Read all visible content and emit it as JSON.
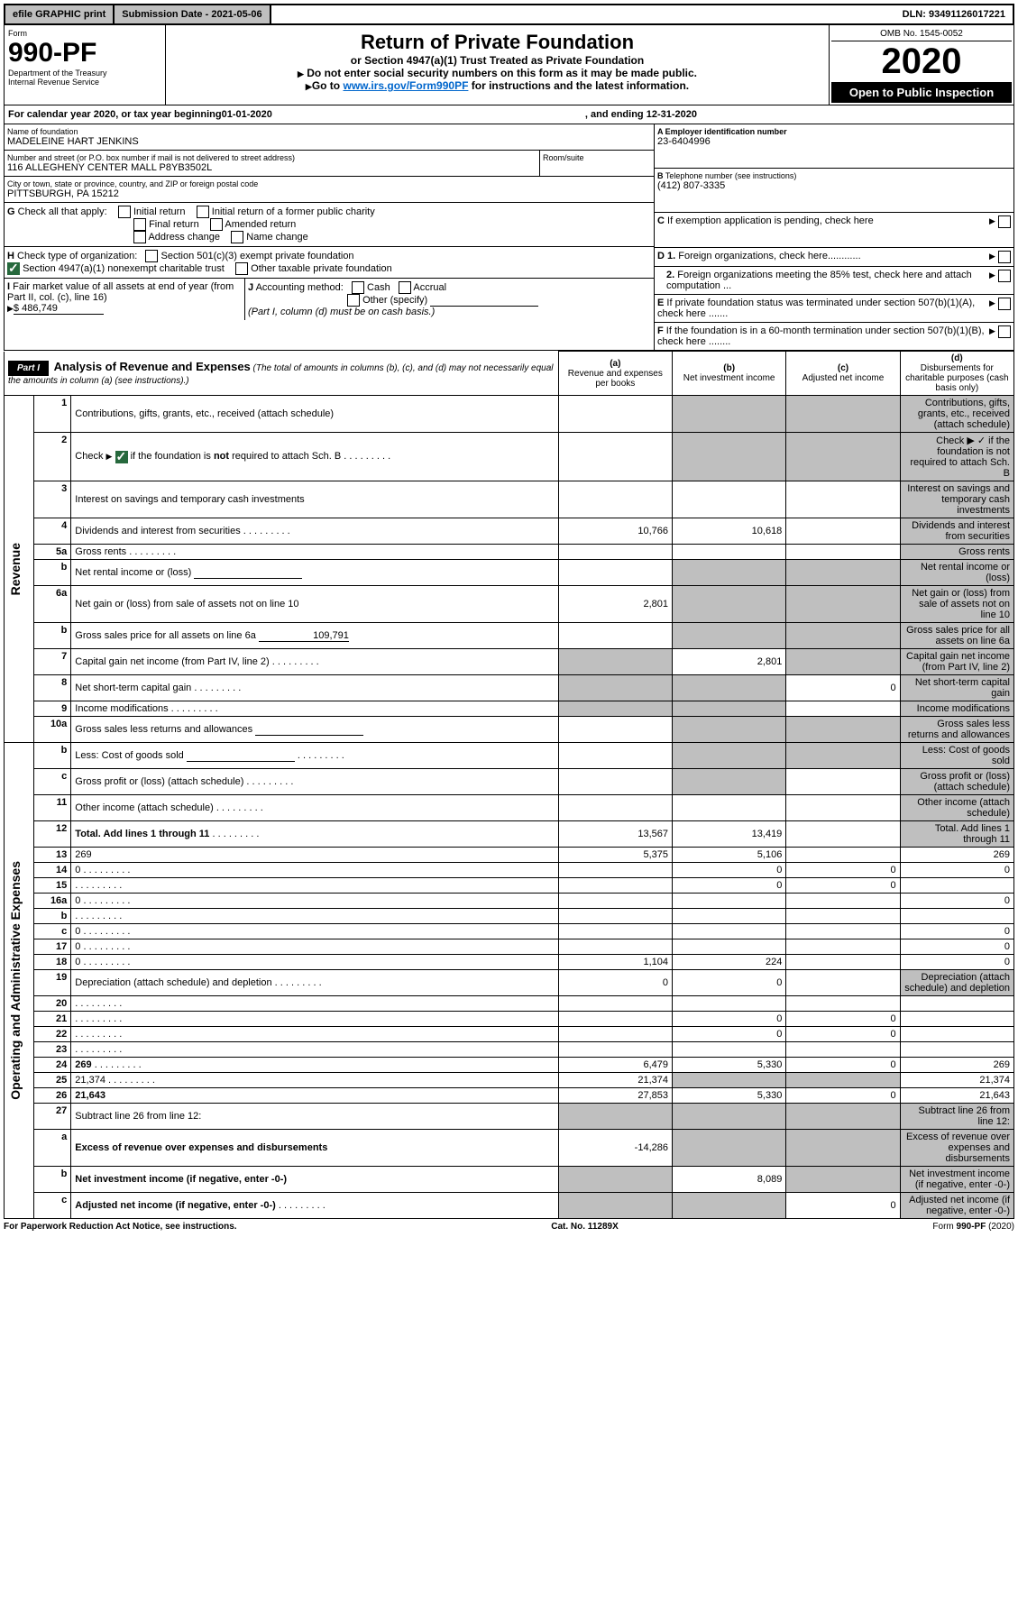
{
  "topbar": {
    "efile": "efile GRAPHIC print",
    "subdate_label": "Submission Date - ",
    "subdate": "2021-05-06",
    "dln_label": "DLN: ",
    "dln": "93491126017221"
  },
  "hl": {
    "form": "Form",
    "no": "990-PF",
    "dept": "Department of the Treasury",
    "irs": "Internal Revenue Service"
  },
  "hc": {
    "t1": "Return of Private Foundation",
    "t2": "or Section 4947(a)(1) Trust Treated as Private Foundation",
    "t3": "Do not enter social security numbers on this form as it may be made public.",
    "t4": "Go to ",
    "link": "www.irs.gov/Form990PF",
    "t5": " for instructions and the latest information."
  },
  "hr": {
    "omb": "OMB No. 1545-0052",
    "year": "2020",
    "open": "Open to Public Inspection"
  },
  "cal": {
    "a": "For calendar year 2020, or tax year beginning ",
    "b": "01-01-2020",
    "c": ", and ending ",
    "d": "12-31-2020"
  },
  "info": {
    "name_lbl": "Name of foundation",
    "name": "MADELEINE HART JENKINS",
    "street_lbl": "Number and street (or P.O. box number if mail is not delivered to street address)",
    "street": "116 ALLEGHENY CENTER MALL P8YB3502L",
    "room_lbl": "Room/suite",
    "city_lbl": "City or town, state or province, country, and ZIP or foreign postal code",
    "city": "PITTSBURGH, PA  15212",
    "A_lbl": "A Employer identification number",
    "A": "23-6404996",
    "B_lbl": "B",
    "B_txt": " Telephone number (see instructions)",
    "B": "(412) 807-3335",
    "C_lbl": "C",
    "C_txt": " If exemption application is pending, check here",
    "D1_lbl": "D 1.",
    "D1_txt": " Foreign organizations, check here............",
    "D2_lbl": "2.",
    "D2_txt": " Foreign organizations meeting the 85% test, check here and attach computation ...",
    "E_lbl": "E",
    "E_txt": " If private foundation status was terminated under section 507(b)(1)(A), check here .......",
    "F_lbl": "F",
    "F_txt": " If the foundation is in a 60-month termination under section 507(b)(1)(B), check here ........"
  },
  "G": {
    "lbl": "G",
    "txt": " Check all that apply:",
    "o1": "Initial return",
    "o2": "Initial return of a former public charity",
    "o3": "Final return",
    "o4": "Amended return",
    "o5": "Address change",
    "o6": "Name change"
  },
  "H": {
    "lbl": "H",
    "txt": " Check type of organization:",
    "o1": "Section 501(c)(3) exempt private foundation",
    "o2": "Section 4947(a)(1) nonexempt charitable trust",
    "o3": "Other taxable private foundation"
  },
  "I": {
    "lbl": "I",
    "txt": " Fair market value of all assets at end of year (from Part II, col. (c), line 16)",
    "arrow": "▶",
    "val": "$  486,749"
  },
  "J": {
    "lbl": "J",
    "txt": " Accounting method:",
    "o1": "Cash",
    "o2": "Accrual",
    "o3": "Other (specify)",
    "note": "(Part I, column (d) must be on cash basis.)"
  },
  "part1": {
    "lbl": "Part I",
    "title": "Analysis of Revenue and Expenses",
    "note": " (The total of amounts in columns (b), (c), and (d) may not necessarily equal the amounts in column (a) (see instructions).)",
    "cola": "(a)",
    "colat": "Revenue and expenses per books",
    "colb": "(b)",
    "colbt": "Net investment income",
    "colc": "(c)",
    "colct": "Adjusted net income",
    "cold": "(d)",
    "coldt": "Disbursements for charitable purposes (cash basis only)"
  },
  "sec_rev": "Revenue",
  "sec_exp": "Operating and Administrative Expenses",
  "rows": [
    {
      "n": "1",
      "d": "Contributions, gifts, grants, etc., received (attach schedule)",
      "a": "",
      "b_g": 1,
      "c_g": 1,
      "d_g": 1
    },
    {
      "n": "2",
      "d": "Check ▶ ✓ if the foundation is not required to attach Sch. B",
      "dots": 1,
      "a": "",
      "b_g": 1,
      "c_g": 1,
      "d_g": 1,
      "chk": 1
    },
    {
      "n": "3",
      "d": "Interest on savings and temporary cash investments",
      "a": "",
      "b": "",
      "c": "",
      "d_g": 1
    },
    {
      "n": "4",
      "d": "Dividends and interest from securities",
      "dots": 1,
      "a": "10,766",
      "b": "10,618",
      "c": "",
      "d_g": 1
    },
    {
      "n": "5a",
      "d": "Gross rents",
      "dots": 1,
      "a": "",
      "b": "",
      "c": "",
      "d_g": 1
    },
    {
      "n": "b",
      "d": "Net rental income or (loss)",
      "uline": 1,
      "b_g": 1,
      "c_g": 1,
      "d_g": 1
    },
    {
      "n": "6a",
      "d": "Net gain or (loss) from sale of assets not on line 10",
      "a": "2,801",
      "b_g": 1,
      "c_g": 1,
      "d_g": 1
    },
    {
      "n": "b",
      "d": "Gross sales price for all assets on line 6a",
      "uval": "109,791",
      "b_g": 1,
      "c_g": 1,
      "d_g": 1
    },
    {
      "n": "7",
      "d": "Capital gain net income (from Part IV, line 2)",
      "dots": 1,
      "a_g": 1,
      "b": "2,801",
      "c_g": 1,
      "d_g": 1
    },
    {
      "n": "8",
      "d": "Net short-term capital gain",
      "dots": 1,
      "a_g": 1,
      "b_g": 1,
      "c": "0",
      "d_g": 1
    },
    {
      "n": "9",
      "d": "Income modifications",
      "dots": 1,
      "a_g": 1,
      "b_g": 1,
      "c": "",
      "d_g": 1
    },
    {
      "n": "10a",
      "d": "Gross sales less returns and allowances",
      "uline": 1,
      "b_g": 1,
      "c_g": 1,
      "d_g": 1
    },
    {
      "n": "b",
      "d": "Less: Cost of goods sold",
      "dots": 1,
      "uline": 1,
      "b_g": 1,
      "c_g": 1,
      "d_g": 1
    },
    {
      "n": "c",
      "d": "Gross profit or (loss) (attach schedule)",
      "dots": 1,
      "a": "",
      "b_g": 1,
      "c": "",
      "d_g": 1
    },
    {
      "n": "11",
      "d": "Other income (attach schedule)",
      "dots": 1,
      "a": "",
      "b": "",
      "c": "",
      "d_g": 1
    },
    {
      "n": "12",
      "d": "Total. Add lines 1 through 11",
      "bold": 1,
      "dots": 1,
      "a": "13,567",
      "b": "13,419",
      "c": "",
      "d_g": 1
    },
    {
      "n": "13",
      "d": "269",
      "a": "5,375",
      "b": "5,106",
      "c": ""
    },
    {
      "n": "14",
      "d": "0",
      "dots": 1,
      "a": "",
      "b": "0",
      "c": "0"
    },
    {
      "n": "15",
      "d": "",
      "dots": 1,
      "a": "",
      "b": "0",
      "c": "0"
    },
    {
      "n": "16a",
      "d": "0",
      "dots": 1,
      "a": "",
      "b": "",
      "c": ""
    },
    {
      "n": "b",
      "d": "",
      "dots": 1,
      "a": "",
      "b": "",
      "c": ""
    },
    {
      "n": "c",
      "d": "0",
      "dots": 1,
      "a": "",
      "b": "",
      "c": ""
    },
    {
      "n": "17",
      "d": "0",
      "dots": 1,
      "a": "",
      "b": "",
      "c": ""
    },
    {
      "n": "18",
      "d": "0",
      "dots": 1,
      "a": "1,104",
      "b": "224",
      "c": ""
    },
    {
      "n": "19",
      "d": "Depreciation (attach schedule) and depletion",
      "dots": 1,
      "a": "0",
      "b": "0",
      "c": "",
      "d_g": 1
    },
    {
      "n": "20",
      "d": "",
      "dots": 1,
      "a": "",
      "b": "",
      "c": ""
    },
    {
      "n": "21",
      "d": "",
      "dots": 1,
      "a": "",
      "b": "0",
      "c": "0"
    },
    {
      "n": "22",
      "d": "",
      "dots": 1,
      "a": "",
      "b": "0",
      "c": "0"
    },
    {
      "n": "23",
      "d": "",
      "dots": 1,
      "a": "",
      "b": "",
      "c": ""
    },
    {
      "n": "24",
      "d": "269",
      "bold": 1,
      "dots": 1,
      "a": "6,479",
      "b": "5,330",
      "c": "0"
    },
    {
      "n": "25",
      "d": "21,374",
      "dots": 1,
      "a": "21,374",
      "b_g": 1,
      "c_g": 1
    },
    {
      "n": "26",
      "d": "21,643",
      "bold": 1,
      "a": "27,853",
      "b": "5,330",
      "c": "0"
    },
    {
      "n": "27",
      "d": "Subtract line 26 from line 12:",
      "a_g": 1,
      "b_g": 1,
      "c_g": 1,
      "d_g": 1
    },
    {
      "n": "a",
      "d": "Excess of revenue over expenses and disbursements",
      "bold": 1,
      "a": "-14,286",
      "b_g": 1,
      "c_g": 1,
      "d_g": 1
    },
    {
      "n": "b",
      "d": "Net investment income (if negative, enter -0-)",
      "bold": 1,
      "a_g": 1,
      "b": "8,089",
      "c_g": 1,
      "d_g": 1
    },
    {
      "n": "c",
      "d": "Adjusted net income (if negative, enter -0-)",
      "bold": 1,
      "dots": 1,
      "a_g": 1,
      "b_g": 1,
      "c": "0",
      "d_g": 1
    }
  ],
  "footer": {
    "a": "For Paperwork Reduction Act Notice, see instructions.",
    "b": "Cat. No. 11289X",
    "c": "Form 990-PF (2020)"
  }
}
